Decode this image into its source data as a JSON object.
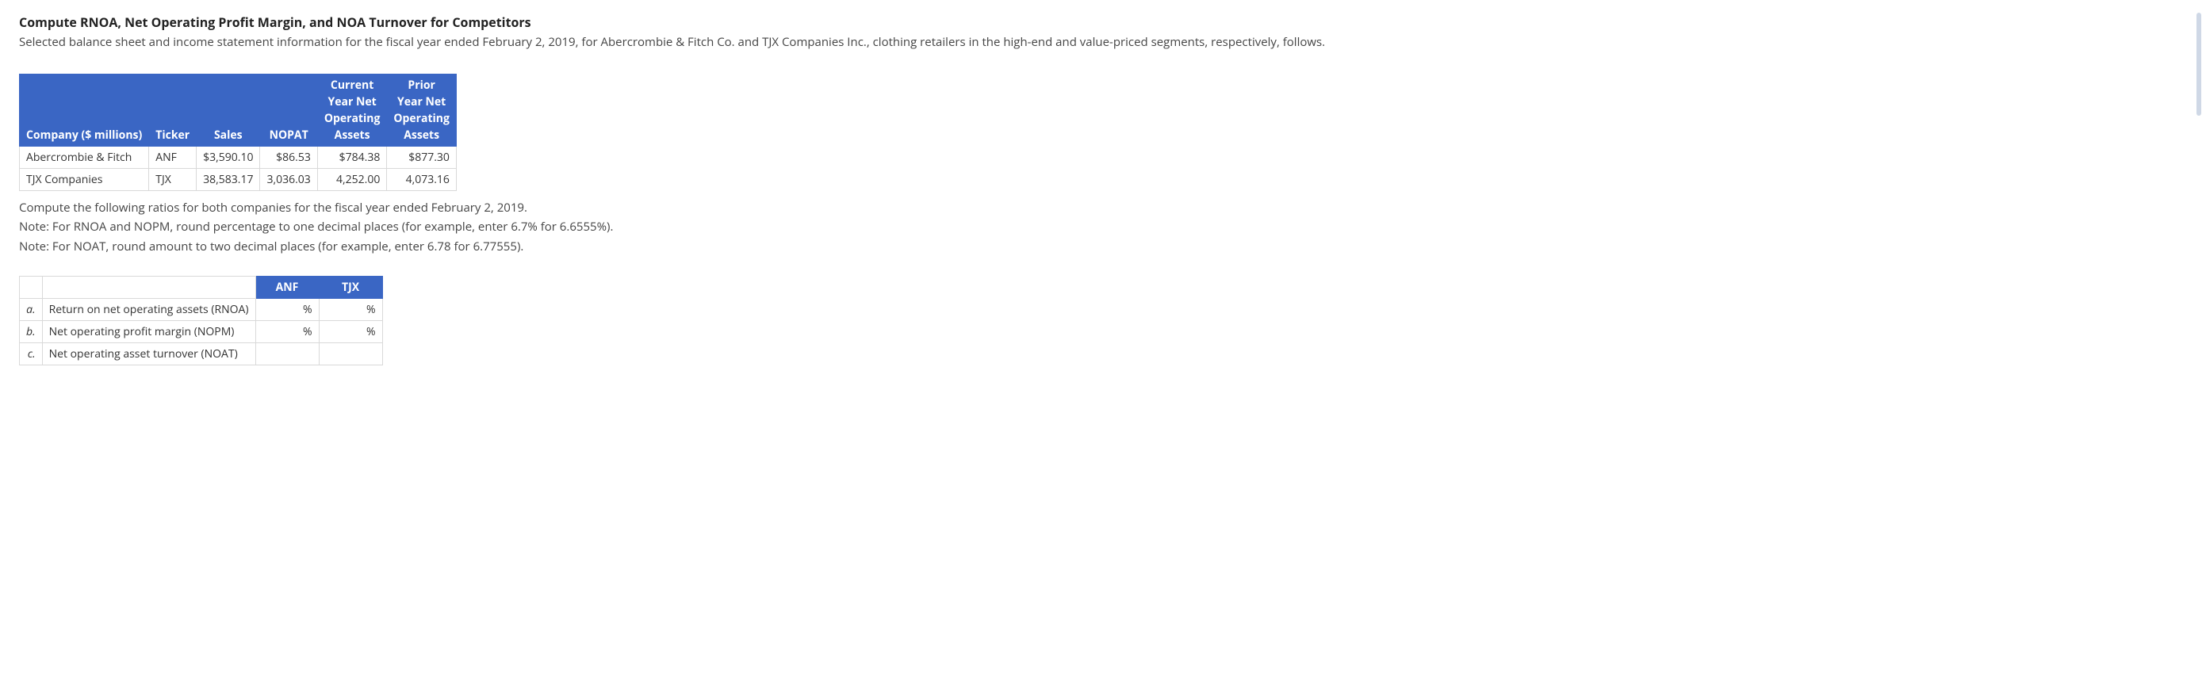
{
  "heading": "Compute RNOA, Net Operating Profit Margin, and NOA Turnover for Competitors",
  "intro": "Selected balance sheet and income statement information for the fiscal year ended February 2, 2019, for Abercrombie & Fitch Co. and TJX Companies Inc., clothing retailers in the high-end and value-priced segments, respectively, follows.",
  "data_table": {
    "columns": [
      "Company ($ millions)",
      "Ticker",
      "Sales",
      "NOPAT",
      "Current Year Net Operating Assets",
      "Prior Year Net Operating Assets"
    ],
    "header_multiline": {
      "col4_line1": "Current",
      "col4_line2": "Year Net",
      "col4_line3": "Operating",
      "col4_line4": "Assets",
      "col5_line1": "Prior",
      "col5_line2": "Year Net",
      "col5_line3": "Operating",
      "col5_line4": "Assets"
    },
    "rows": [
      {
        "company": "Abercrombie & Fitch",
        "ticker": "ANF",
        "sales": "$3,590.10",
        "nopat": "$86.53",
        "cnoa": "$784.38",
        "pnoa": "$877.30"
      },
      {
        "company": "TJX Companies",
        "ticker": "TJX",
        "sales": "38,583.17",
        "nopat": "3,036.03",
        "cnoa": "4,252.00",
        "pnoa": "4,073.16"
      }
    ]
  },
  "instructions": {
    "line1": "Compute the following ratios for both companies for the fiscal year ended February 2, 2019.",
    "line2": "Note: For RNOA and NOPM, round percentage to one decimal places (for example, enter 6.7% for 6.6555%).",
    "line3": "Note: For NOAT, round amount to two decimal places (for example, enter 6.78 for 6.77555)."
  },
  "answer_table": {
    "columns": {
      "c1": "ANF",
      "c2": "TJX"
    },
    "rows": [
      {
        "letter": "a.",
        "label": "Return on net operating assets (RNOA)",
        "anf": "%",
        "tjx": "%"
      },
      {
        "letter": "b.",
        "label": "Net operating profit margin (NOPM)",
        "anf": "%",
        "tjx": "%"
      },
      {
        "letter": "c.",
        "label": "Net operating asset turnover (NOAT)",
        "anf": "",
        "tjx": ""
      }
    ]
  },
  "colors": {
    "header_bg": "#3a66c4",
    "header_text": "#ffffff",
    "border": "#d9d9d9",
    "body_text": "#333333",
    "side_marker": "#cfd8e6"
  }
}
